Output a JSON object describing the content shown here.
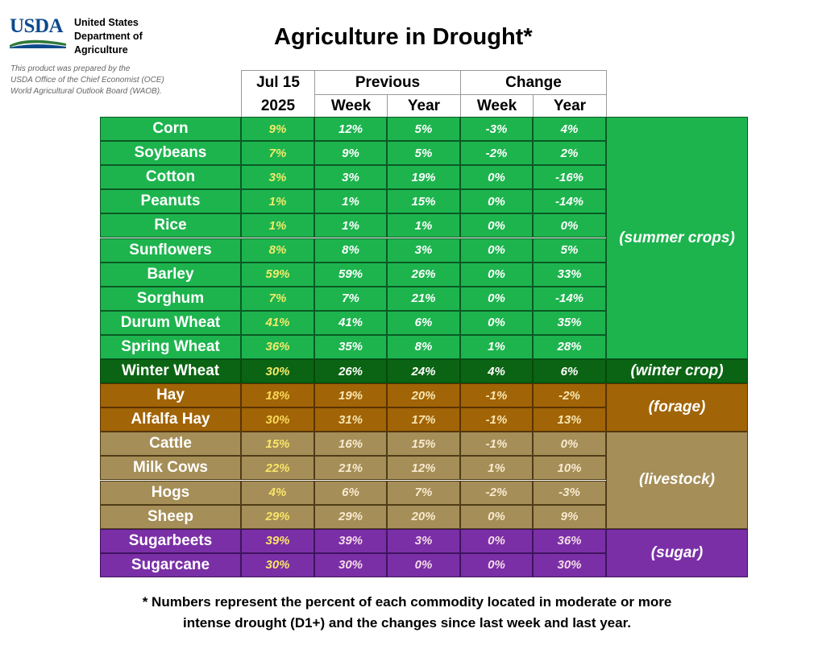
{
  "header": {
    "logo_text": "USDA",
    "agency_lines": [
      "United States",
      "Department of",
      "Agriculture"
    ],
    "credit_lines": [
      "This product was prepared by the",
      "USDA Office of the Chief Economist (OCE)",
      "World Agricultural Outlook Board (WAOB)."
    ],
    "title": "Agriculture in Drought*"
  },
  "columns": {
    "current_top": "Jul 15",
    "current_bottom": "2025",
    "previous": "Previous",
    "change": "Change",
    "week": "Week",
    "year": "Year"
  },
  "groups": [
    {
      "label": "(summer crops)",
      "colors": {
        "bg": "#1db44e",
        "border": "#0a5a24",
        "first": "#f2ea6a",
        "text": "#ffffff"
      },
      "rows": [
        {
          "name": "Corn",
          "values": [
            "9%",
            "12%",
            "5%",
            "-3%",
            "4%"
          ]
        },
        {
          "name": "Soybeans",
          "values": [
            "7%",
            "9%",
            "5%",
            "-2%",
            "2%"
          ]
        },
        {
          "name": "Cotton",
          "values": [
            "3%",
            "3%",
            "19%",
            "0%",
            "-16%"
          ]
        },
        {
          "name": "Peanuts",
          "values": [
            "1%",
            "1%",
            "15%",
            "0%",
            "-14%"
          ]
        },
        {
          "name": "Rice",
          "values": [
            "1%",
            "1%",
            "1%",
            "0%",
            "0%"
          ]
        },
        {
          "name": "Sunflowers",
          "values": [
            "8%",
            "8%",
            "3%",
            "0%",
            "5%"
          ]
        },
        {
          "name": "Barley",
          "values": [
            "59%",
            "59%",
            "26%",
            "0%",
            "33%"
          ]
        },
        {
          "name": "Sorghum",
          "values": [
            "7%",
            "7%",
            "21%",
            "0%",
            "-14%"
          ]
        },
        {
          "name": "Durum Wheat",
          "values": [
            "41%",
            "41%",
            "6%",
            "0%",
            "35%"
          ]
        },
        {
          "name": "Spring Wheat",
          "values": [
            "36%",
            "35%",
            "8%",
            "1%",
            "28%"
          ]
        }
      ]
    },
    {
      "label": "(winter crop)",
      "colors": {
        "bg": "#0b6413",
        "border": "#044a0a",
        "first": "#f2ea6a",
        "text": "#ffffff"
      },
      "rows": [
        {
          "name": "Winter Wheat",
          "values": [
            "30%",
            "26%",
            "24%",
            "4%",
            "6%"
          ]
        }
      ]
    },
    {
      "label": "(forage)",
      "colors": {
        "bg": "#a16406",
        "border": "#5a3300",
        "first": "#f8d85a",
        "text": "#f7e6b2"
      },
      "rows": [
        {
          "name": "Hay",
          "values": [
            "18%",
            "19%",
            "20%",
            "-1%",
            "-2%"
          ]
        },
        {
          "name": "Alfalfa Hay",
          "values": [
            "30%",
            "31%",
            "17%",
            "-1%",
            "13%"
          ]
        }
      ]
    },
    {
      "label": "(livestock)",
      "colors": {
        "bg": "#a58e57",
        "border": "#4f3c18",
        "first": "#f8e46a",
        "text": "#f8ead0"
      },
      "rows": [
        {
          "name": "Cattle",
          "values": [
            "15%",
            "16%",
            "15%",
            "-1%",
            "0%"
          ]
        },
        {
          "name": "Milk Cows",
          "values": [
            "22%",
            "21%",
            "12%",
            "1%",
            "10%"
          ]
        },
        {
          "name": "Hogs",
          "values": [
            "4%",
            "6%",
            "7%",
            "-2%",
            "-3%"
          ]
        },
        {
          "name": "Sheep",
          "values": [
            "29%",
            "29%",
            "20%",
            "0%",
            "9%"
          ]
        }
      ]
    },
    {
      "label": "(sugar)",
      "colors": {
        "bg": "#7a2fa6",
        "border": "#3e1460",
        "first": "#f8e46a",
        "text": "#f4dbe8"
      },
      "rows": [
        {
          "name": "Sugarbeets",
          "values": [
            "39%",
            "39%",
            "3%",
            "0%",
            "36%"
          ]
        },
        {
          "name": "Sugarcane",
          "values": [
            "30%",
            "30%",
            "0%",
            "0%",
            "30%"
          ]
        }
      ]
    }
  ],
  "footnote": [
    "* Numbers represent the percent of each commodity located in moderate or more",
    "intense drought (D1+) and the changes since last week and last year."
  ]
}
